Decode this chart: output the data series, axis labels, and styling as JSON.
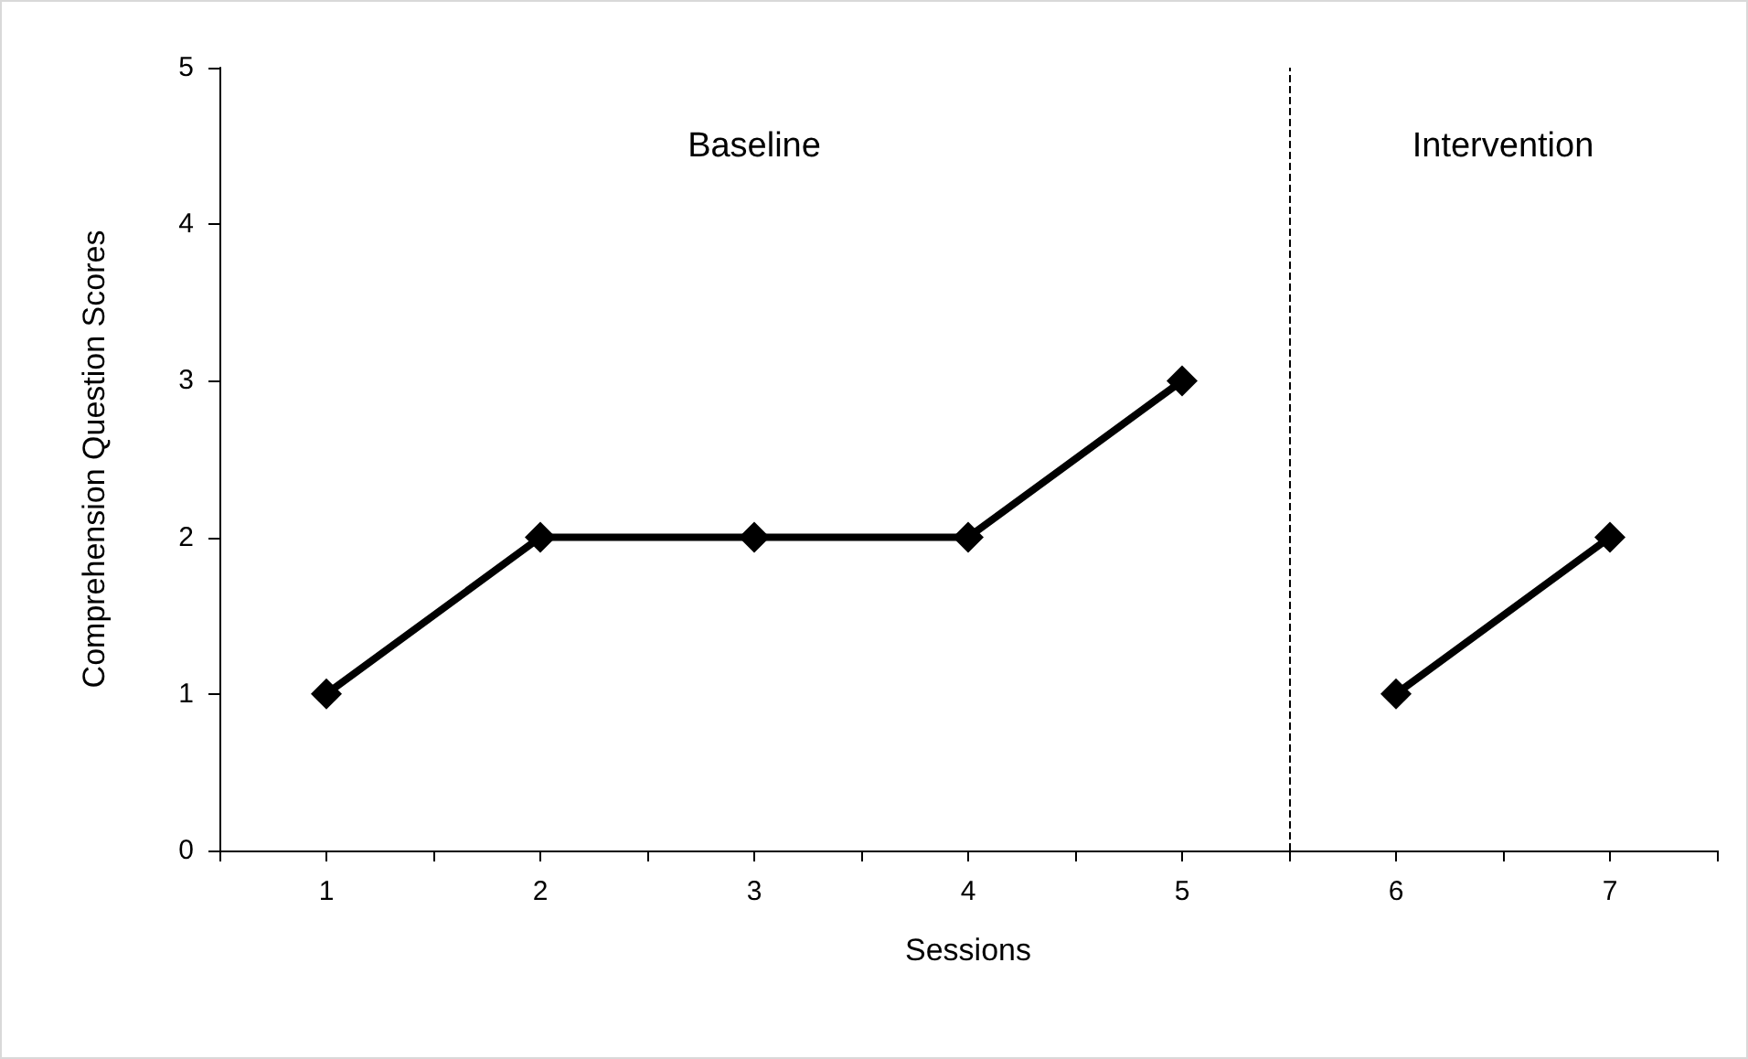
{
  "chart_data": {
    "type": "line",
    "xlabel": "Sessions",
    "ylabel": "Comprehension Question Scores",
    "xlim": [
      0.5,
      7.5
    ],
    "xticks": [
      {
        "value": 0.5,
        "label": null
      },
      1,
      {
        "value": 1.5,
        "label": null
      },
      2,
      {
        "value": 2.5,
        "label": null
      },
      3,
      {
        "value": 3.5,
        "label": null
      },
      4,
      {
        "value": 4.5,
        "label": null
      },
      5,
      {
        "value": 5.5,
        "label": null
      },
      6,
      {
        "value": 6.5,
        "label": null
      },
      7,
      {
        "value": 7.5,
        "label": null
      }
    ],
    "ylim": [
      0,
      5
    ],
    "yticks": [
      0,
      1,
      2,
      3,
      4,
      5
    ],
    "series": [
      {
        "color": "#000000",
        "x": [
          1,
          2,
          3,
          4,
          5
        ],
        "values": [
          1,
          2,
          2,
          2,
          3
        ]
      },
      {
        "color": "#000000",
        "x": [
          6,
          7
        ],
        "values": [
          1,
          2
        ]
      }
    ],
    "ref_lines": [
      {
        "axis": "x",
        "value": 5.5,
        "color": "#000000",
        "line_style": "dashed"
      }
    ],
    "annotations": [
      "Baseline",
      "Intervention"
    ],
    "marker": "diamond",
    "line_style": "solid"
  }
}
